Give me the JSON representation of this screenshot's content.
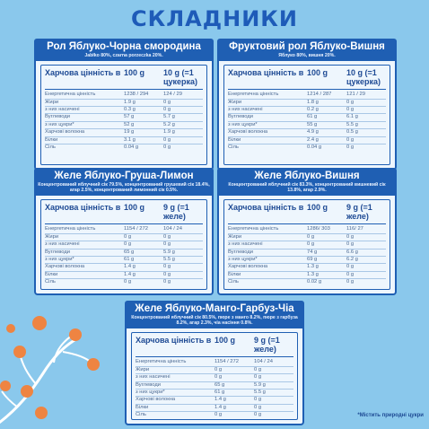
{
  "title": "СКЛАДНИКИ",
  "footnote": "*Містить природні цукри",
  "header_label": "Харчова цінність в",
  "cards": [
    {
      "title": "Рол Яблуко-Чорна смородина",
      "subtitle": "Jabłko 80%, czarna porzeczka 20%.",
      "col1": "100 g",
      "col2": "10 g (=1 цукерка)",
      "rows": [
        [
          "Енергетична цінність",
          "1238 / 294",
          "124 / 29"
        ],
        [
          "Жири",
          "1.9 g",
          "0 g"
        ],
        [
          "з них насичені",
          "0.3 g",
          "0 g"
        ],
        [
          "Вуглеводи",
          "57 g",
          "5.7 g"
        ],
        [
          "з них цукри*",
          "52 g",
          "5.2 g"
        ],
        [
          "Харчові волокна",
          "19 g",
          "1.9 g"
        ],
        [
          "Білки",
          "3.1 g",
          "0 g"
        ],
        [
          "Сіль",
          "0.04 g",
          "0 g"
        ]
      ]
    },
    {
      "title": "Фруктовий рол Яблуко-Вишня",
      "subtitle": "Яблуко 80%, вишня 20%.",
      "col1": "100 g",
      "col2": "10 g (=1 цукерка)",
      "rows": [
        [
          "Енергетична цінність",
          "1214 / 287",
          "121 / 29"
        ],
        [
          "Жири",
          "1.8 g",
          "0 g"
        ],
        [
          "з них насичені",
          "0.2 g",
          "0 g"
        ],
        [
          "Вуглеводи",
          "61 g",
          "6.1 g"
        ],
        [
          "з них цукри*",
          "55 g",
          "5.5 g"
        ],
        [
          "Харчові волокна",
          "4.9 g",
          "0.5 g"
        ],
        [
          "Білки",
          "2.4 g",
          "0 g"
        ],
        [
          "Сіль",
          "0.04 g",
          "0 g"
        ]
      ]
    },
    {
      "title": "Желе Яблуко-Груша-Лимон",
      "subtitle": "Концентрований яблучний сік 79.5%, концентрований грушевий сік 18.4%, агар 2.5%, концентрований лимонний сік 0.5%.",
      "col1": "100 g",
      "col2": "9 g (=1 желе)",
      "rows": [
        [
          "Енергетична цінність",
          "1154 / 272",
          "104 / 24"
        ],
        [
          "Жири",
          "0 g",
          "0 g"
        ],
        [
          "з них насичені",
          "0 g",
          "0 g"
        ],
        [
          "Вуглеводи",
          "65 g",
          "5.9 g"
        ],
        [
          "з них цукри*",
          "61 g",
          "5.5 g"
        ],
        [
          "Харчові волокна",
          "1.4 g",
          "0 g"
        ],
        [
          "Білки",
          "1.4 g",
          "0 g"
        ],
        [
          "Сіль",
          "0 g",
          "0 g"
        ]
      ]
    },
    {
      "title": "Желе Яблуко-Вишня",
      "subtitle": "Концентрований яблучний сік 83.3%, концентрований вишневий сік 13.8%, агар 2.9%.",
      "col1": "100 g",
      "col2": "9 g (=1 желе)",
      "rows": [
        [
          "Енергетична цінність",
          "1286/ 303",
          "116/ 27"
        ],
        [
          "Жири",
          "0 g",
          "0 g"
        ],
        [
          "з них насичені",
          "0 g",
          "0 g"
        ],
        [
          "Вуглеводи",
          "74 g",
          "6.6 g"
        ],
        [
          "з них цукри*",
          "69 g",
          "6.2 g"
        ],
        [
          "Харчові волокна",
          "1.3 g",
          "0 g"
        ],
        [
          "Білки",
          "1.3 g",
          "0 g"
        ],
        [
          "Сіль",
          "0.02 g",
          "0 g"
        ]
      ]
    },
    {
      "title": "Желе Яблуко-Манго-Гарбуз-Чіа",
      "subtitle": "Концентрований яблучний сік 80.5%, пюре з манго 8.2%, пюре з гарбуза 8.2%, агар 2.3%, чіа насіння 0.8%.",
      "col1": "100 g",
      "col2": "9 g (=1 желе)",
      "rows": [
        [
          "Енергетична цінність",
          "1154 / 272",
          "104 / 24"
        ],
        [
          "Жири",
          "0 g",
          "0 g"
        ],
        [
          "з них насичені",
          "0 g",
          "0 g"
        ],
        [
          "Вуглеводи",
          "65 g",
          "5.9 g"
        ],
        [
          "з них цукри*",
          "61 g",
          "5.5 g"
        ],
        [
          "Харчові волокна",
          "1.4 g",
          "0 g"
        ],
        [
          "Білки",
          "1.4 g",
          "0 g"
        ],
        [
          "Сіль",
          "0 g",
          "0 g"
        ]
      ]
    }
  ]
}
